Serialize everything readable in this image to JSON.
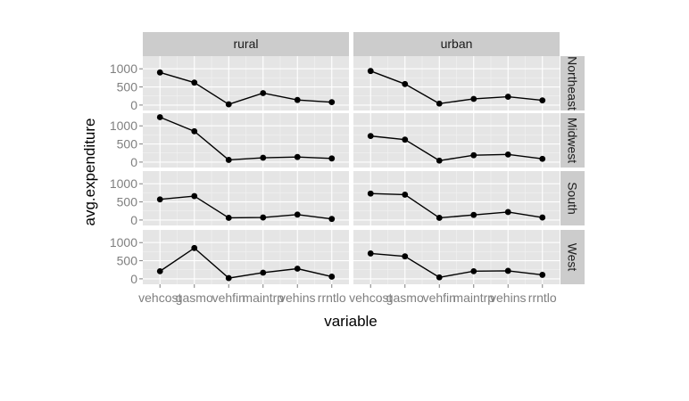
{
  "chart_data": {
    "type": "line",
    "xlabel": "variable",
    "ylabel": "avg.expenditure",
    "categories": [
      "vehcost",
      "gasmo",
      "vehfin",
      "maintrp",
      "vehins",
      "rrntlo"
    ],
    "tick_labels": [
      "vehcost",
      "gasmo",
      "vehfin",
      "maintrp",
      "vehins",
      "rrntlo"
    ],
    "columns": [
      "rural",
      "urban"
    ],
    "rows": [
      "Northeast",
      "Midwest",
      "South",
      "West"
    ],
    "yticks": [
      0,
      500,
      1000
    ],
    "ylim": [
      -150,
      1350
    ],
    "grid": true,
    "series": [
      {
        "row": "Northeast",
        "column": "rural",
        "values": [
          900,
          620,
          20,
          330,
          140,
          80
        ]
      },
      {
        "row": "Northeast",
        "column": "urban",
        "values": [
          940,
          580,
          40,
          170,
          230,
          130
        ]
      },
      {
        "row": "Midwest",
        "column": "rural",
        "values": [
          1240,
          850,
          60,
          120,
          140,
          100
        ]
      },
      {
        "row": "Midwest",
        "column": "urban",
        "values": [
          720,
          620,
          40,
          190,
          210,
          90
        ]
      },
      {
        "row": "South",
        "column": "rural",
        "values": [
          570,
          660,
          60,
          70,
          150,
          30
        ]
      },
      {
        "row": "South",
        "column": "urban",
        "values": [
          730,
          700,
          60,
          140,
          220,
          70
        ]
      },
      {
        "row": "West",
        "column": "rural",
        "values": [
          210,
          850,
          20,
          170,
          280,
          60
        ]
      },
      {
        "row": "West",
        "column": "urban",
        "values": [
          700,
          620,
          40,
          210,
          220,
          110
        ]
      }
    ]
  },
  "colors": {
    "panel_bg": "#e5e5e5",
    "strip_bg": "#cccccc",
    "grid_major": "#ffffff",
    "grid_minor": "#f2f2f2",
    "line": "#000000"
  }
}
